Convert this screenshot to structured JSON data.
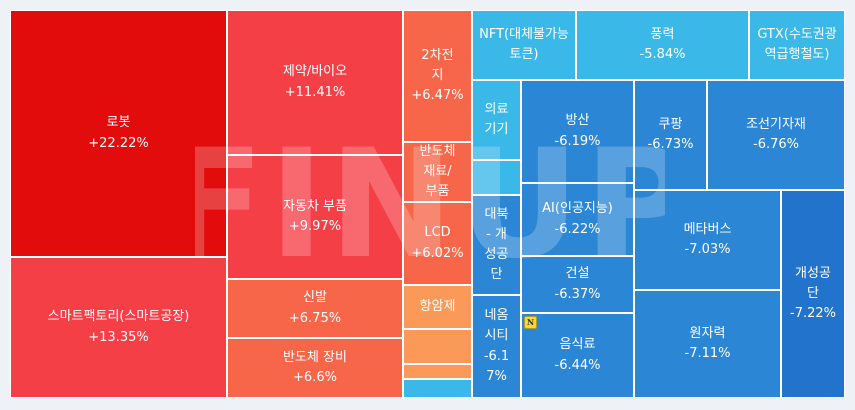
{
  "watermark": "FINUP",
  "badge": "N",
  "colors": {
    "up_strong": "#e20c0c",
    "up": "#f53f47",
    "up_mid": "#f76649",
    "up_light": "#fb9a58",
    "down_light": "#3ab8e8",
    "down": "#2b86d6",
    "down_strong": "#2273cc"
  },
  "chart_data": {
    "type": "treemap",
    "unit": "%",
    "items": [
      {
        "name": "로봇",
        "change": "+22.22%",
        "value": 22.22
      },
      {
        "name": "스마트팩토리(스마트공장)",
        "change": "+13.35%",
        "value": 13.35
      },
      {
        "name": "제약/바이오",
        "change": "+11.41%",
        "value": 11.41
      },
      {
        "name": "자동차 부품",
        "change": "+9.97%",
        "value": 9.97
      },
      {
        "name": "신발",
        "change": "+6.75%",
        "value": 6.75
      },
      {
        "name": "반도체 장비",
        "change": "+6.6%",
        "value": 6.6
      },
      {
        "name": "2차전지",
        "change": "+6.47%",
        "value": 6.47
      },
      {
        "name": "반도체 재료/부품",
        "change": "",
        "value": null
      },
      {
        "name": "LCD",
        "change": "+6.02%",
        "value": 6.02
      },
      {
        "name": "항암제",
        "change": "",
        "value": null
      },
      {
        "name": "",
        "change": "",
        "value": null
      },
      {
        "name": "",
        "change": "",
        "value": null
      },
      {
        "name": "",
        "change": "",
        "value": null
      },
      {
        "name": "NFT(대체불가능토큰)",
        "change": "",
        "value": null
      },
      {
        "name": "풍력",
        "change": "-5.84%",
        "value": -5.84
      },
      {
        "name": "GTX(수도권광역급행철도)",
        "change": "",
        "value": null
      },
      {
        "name": "의료기기",
        "change": "",
        "value": null
      },
      {
        "name": "",
        "change": "",
        "value": null
      },
      {
        "name": "대북 - 개성공단",
        "change": "",
        "value": null
      },
      {
        "name": "네옴시티",
        "change": "-6.17%",
        "value": -6.17
      },
      {
        "name": "방산",
        "change": "-6.19%",
        "value": -6.19
      },
      {
        "name": "AI(인공지능)",
        "change": "-6.22%",
        "value": -6.22
      },
      {
        "name": "건설",
        "change": "-6.37%",
        "value": -6.37
      },
      {
        "name": "음식료",
        "change": "-6.44%",
        "value": -6.44
      },
      {
        "name": "쿠팡",
        "change": "-6.73%",
        "value": -6.73
      },
      {
        "name": "조선기자재",
        "change": "-6.76%",
        "value": -6.76
      },
      {
        "name": "메타버스",
        "change": "-7.03%",
        "value": -7.03
      },
      {
        "name": "원자력",
        "change": "-7.11%",
        "value": -7.11
      },
      {
        "name": "개성공단",
        "change": "-7.22%",
        "value": -7.22
      }
    ]
  }
}
